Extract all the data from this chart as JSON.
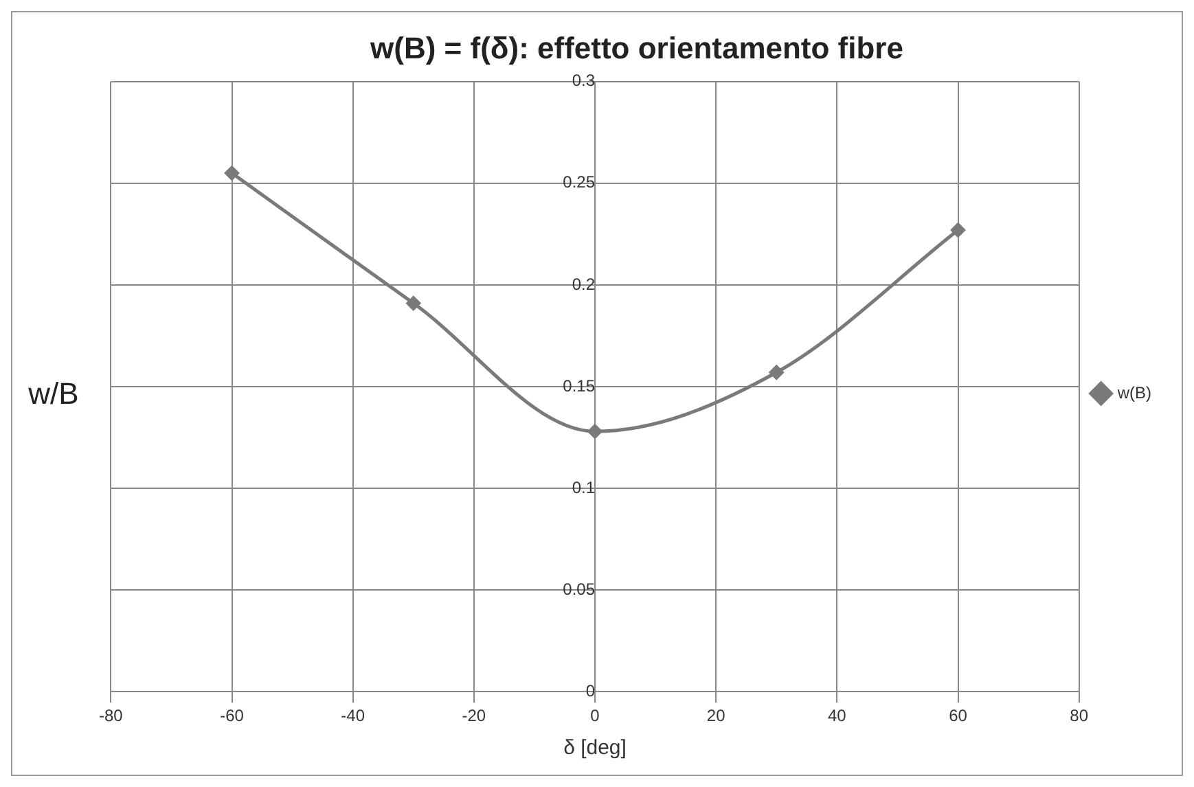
{
  "chart_data": {
    "type": "line",
    "title": "w(B) = f(δ): effetto orientamento fibre",
    "xlabel": "δ [deg]",
    "ylabel": "w/B",
    "x": [
      -60,
      -30,
      0,
      30,
      60
    ],
    "series": [
      {
        "name": "w(B)",
        "color": "#7a7a7a",
        "values": [
          0.255,
          0.191,
          0.128,
          0.157,
          0.227
        ]
      }
    ],
    "xlim": [
      -80,
      80
    ],
    "xticks": [
      -80,
      -60,
      -40,
      -20,
      0,
      20,
      40,
      60,
      80
    ],
    "ylim": [
      0,
      0.3
    ],
    "yticks": [
      0,
      0.05,
      0.1,
      0.15,
      0.2,
      0.25,
      0.3
    ],
    "grid": true,
    "legend": "right",
    "marker": "diamond",
    "line_style": "solid"
  }
}
